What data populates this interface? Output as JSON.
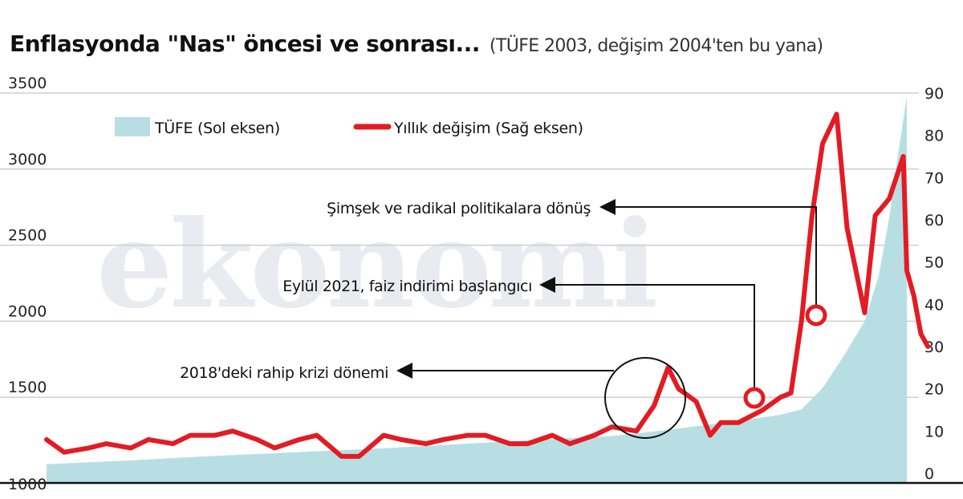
{
  "title": "Enflasyonda \"Nas\" öncesi ve sonrası...",
  "subtitle": "(TÜFE 2003, değişim 2004'ten bu yana)",
  "watermark": "ekonomi",
  "colors": {
    "area": "#b7dfe3",
    "line": "#e31b23",
    "text": "#111111",
    "grid": "#cfcfcf",
    "watermark": "#e8ecf1"
  },
  "chart_data": {
    "type": "area+line",
    "x_range": [
      "2004-01",
      "2024-06"
    ],
    "legend": {
      "placement": "top-left",
      "items": [
        {
          "name": "TÜFE (Sol eksen)",
          "marker": "area"
        },
        {
          "name": "Yıllık değişim (Sağ eksen)",
          "marker": "line"
        }
      ]
    },
    "left_axis": {
      "ticks": [
        "1000",
        "1500",
        "2000",
        "2500",
        "3000",
        "3500"
      ],
      "range": [
        1000,
        3500
      ]
    },
    "right_axis": {
      "ticks": [
        "0",
        "10",
        "20",
        "30",
        "40",
        "50",
        "60",
        "70",
        "80",
        "90"
      ],
      "range": [
        0,
        90
      ]
    },
    "grid": true,
    "series": [
      {
        "name": "TÜFE (Sol eksen)",
        "type": "area",
        "axis": "left",
        "points": [
          [
            "2004-01",
            1060
          ],
          [
            "2006-01",
            1085
          ],
          [
            "2008-01",
            1115
          ],
          [
            "2010-01",
            1140
          ],
          [
            "2012-01",
            1165
          ],
          [
            "2014-01",
            1195
          ],
          [
            "2016-01",
            1225
          ],
          [
            "2017-06",
            1245
          ],
          [
            "2018-06",
            1275
          ],
          [
            "2019-06",
            1310
          ],
          [
            "2020-06",
            1345
          ],
          [
            "2021-06",
            1385
          ],
          [
            "2021-12",
            1420
          ],
          [
            "2022-06",
            1560
          ],
          [
            "2022-12",
            1770
          ],
          [
            "2023-06",
            2000
          ],
          [
            "2023-10",
            2300
          ],
          [
            "2024-01",
            2680
          ],
          [
            "2024-03",
            3020
          ],
          [
            "2024-06",
            3480
          ]
        ]
      },
      {
        "name": "Yıllık değişim (Sağ eksen)",
        "type": "line",
        "axis": "right",
        "points": [
          [
            "2004-01",
            8
          ],
          [
            "2004-06",
            5
          ],
          [
            "2005-01",
            6
          ],
          [
            "2005-06",
            7
          ],
          [
            "2006-01",
            6
          ],
          [
            "2006-06",
            8
          ],
          [
            "2007-01",
            7
          ],
          [
            "2007-06",
            9
          ],
          [
            "2008-01",
            9
          ],
          [
            "2008-06",
            10
          ],
          [
            "2009-01",
            8
          ],
          [
            "2009-06",
            6
          ],
          [
            "2010-01",
            8
          ],
          [
            "2010-06",
            9
          ],
          [
            "2011-01",
            4
          ],
          [
            "2011-06",
            4
          ],
          [
            "2012-01",
            9
          ],
          [
            "2012-06",
            8
          ],
          [
            "2013-01",
            7
          ],
          [
            "2013-06",
            8
          ],
          [
            "2014-01",
            9
          ],
          [
            "2014-06",
            9
          ],
          [
            "2015-01",
            7
          ],
          [
            "2015-06",
            7
          ],
          [
            "2016-01",
            9
          ],
          [
            "2016-06",
            7
          ],
          [
            "2017-01",
            9
          ],
          [
            "2017-06",
            11
          ],
          [
            "2018-01",
            10
          ],
          [
            "2018-06",
            16
          ],
          [
            "2018-10",
            25
          ],
          [
            "2019-01",
            20
          ],
          [
            "2019-06",
            17
          ],
          [
            "2019-10",
            9
          ],
          [
            "2020-01",
            12
          ],
          [
            "2020-06",
            12
          ],
          [
            "2021-01",
            15
          ],
          [
            "2021-06",
            18
          ],
          [
            "2021-09",
            19
          ],
          [
            "2021-12",
            36
          ],
          [
            "2022-03",
            61
          ],
          [
            "2022-06",
            78
          ],
          [
            "2022-10",
            85
          ],
          [
            "2023-01",
            58
          ],
          [
            "2023-06",
            38
          ],
          [
            "2023-09",
            61
          ],
          [
            "2024-01",
            65
          ],
          [
            "2024-03",
            70
          ],
          [
            "2024-05",
            75
          ],
          [
            "2024-06",
            48
          ],
          [
            "2024-08",
            42
          ],
          [
            "2024-10",
            33
          ],
          [
            "2024-12",
            30
          ]
        ]
      }
    ],
    "annotations": [
      {
        "text": "Şimşek ve radikal politikalara dönüş",
        "at": [
          "2023-06",
          38
        ],
        "marker": "circle"
      },
      {
        "text": "Eylül 2021, faiz indirimi başlangıcı",
        "at": [
          "2021-09",
          19
        ],
        "marker": "circle"
      },
      {
        "text": "2018'deki rahip krizi dönemi",
        "at": [
          "2018-10",
          25
        ],
        "marker": "large-circle"
      }
    ]
  }
}
